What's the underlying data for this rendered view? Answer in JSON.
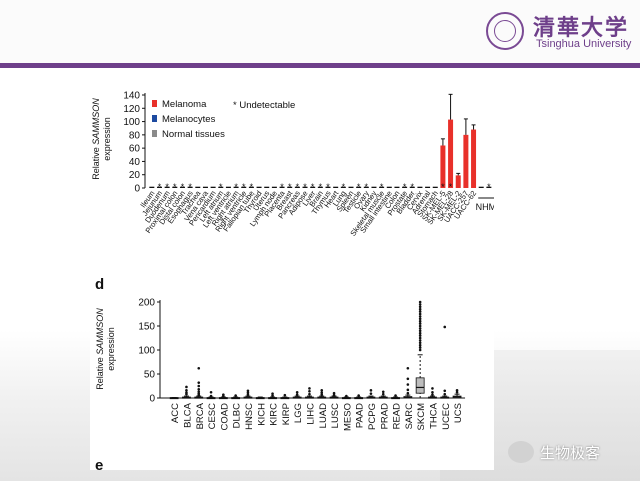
{
  "header": {
    "logo_cn": "清華大学",
    "logo_en": "Tsinghua University"
  },
  "watermark": {
    "text": "生物极客"
  },
  "colors": {
    "melanoma": "#e8302a",
    "melanocytes": "#1d4aa0",
    "normal": "#8a8a8a",
    "brand": "#6e3f8a"
  },
  "chart_data": [
    {
      "type": "bar",
      "ylabel_prefix": "Relative ",
      "ylabel_gene": "SAMMSON",
      "ylabel_suffix": "expression",
      "ylim": [
        0,
        140
      ],
      "yticks": [
        0,
        20,
        40,
        60,
        80,
        100,
        120,
        140
      ],
      "legend": [
        "Melanoma",
        "Melanocytes",
        "Normal tissues"
      ],
      "star_note": "* Undetectable",
      "group_label": "NHME",
      "categories": [
        "Ileum",
        "Jejunum",
        "Duodenum",
        "Proximal colon",
        "Distal colon",
        "Esophagus",
        "Trachea",
        "Vena cava",
        "Pericardium",
        "Left atrium",
        "Left ventricle",
        "Right atrium",
        "Right ventricle",
        "Fallopian tube",
        "Thyroid",
        "Uterus",
        "Lymph node",
        "Placenta",
        "Breast",
        "Pancreas",
        "Adipose",
        "Liver",
        "Brain",
        "Thymus",
        "Heart",
        "Lung",
        "Spleen",
        "Testicle",
        "Ovary",
        "Kidney",
        "Skeletal muscle",
        "Small intestine",
        "Colon",
        "Prostate",
        "Bladder",
        "Cervix",
        "Adrenal",
        "Stomach",
        "SK-MEL-5",
        "SK-MEL-28",
        "SK-MEL-2",
        "UACC-257",
        "UACC-62",
        "",
        "",
        ""
      ],
      "series": [
        {
          "name": "Normal tissues",
          "values": [
            0,
            0,
            0,
            0,
            0,
            0,
            0,
            0,
            0,
            0,
            0,
            0,
            0,
            0,
            0,
            0,
            0,
            0,
            0,
            0,
            0,
            0,
            0,
            0,
            0,
            0,
            0,
            0,
            0,
            0,
            0,
            0,
            0,
            0,
            0,
            0,
            0,
            0,
            null,
            null,
            null,
            null,
            null,
            null,
            null,
            null
          ]
        },
        {
          "name": "Melanoma",
          "values": [
            null,
            null,
            null,
            null,
            null,
            null,
            null,
            null,
            null,
            null,
            null,
            null,
            null,
            null,
            null,
            null,
            null,
            null,
            null,
            null,
            null,
            null,
            null,
            null,
            null,
            null,
            null,
            null,
            null,
            null,
            null,
            null,
            null,
            null,
            null,
            null,
            null,
            null,
            64,
            103,
            19,
            80,
            88,
            null,
            null,
            null
          ],
          "errors": [
            null,
            null,
            null,
            null,
            null,
            null,
            null,
            null,
            null,
            null,
            null,
            null,
            null,
            null,
            null,
            null,
            null,
            null,
            null,
            null,
            null,
            null,
            null,
            null,
            null,
            null,
            null,
            null,
            null,
            null,
            null,
            null,
            null,
            null,
            null,
            null,
            null,
            null,
            10,
            38,
            3,
            24,
            7,
            null,
            null,
            null
          ]
        },
        {
          "name": "Melanocytes",
          "values": [
            null,
            null,
            null,
            null,
            null,
            null,
            null,
            null,
            null,
            null,
            null,
            null,
            null,
            null,
            null,
            null,
            null,
            null,
            null,
            null,
            null,
            null,
            null,
            null,
            null,
            null,
            null,
            null,
            null,
            null,
            null,
            null,
            null,
            null,
            null,
            null,
            null,
            null,
            null,
            null,
            null,
            null,
            null,
            0,
            0,
            0
          ]
        }
      ],
      "undetectable": [
        1,
        2,
        3,
        4,
        5,
        9,
        11,
        12,
        13,
        17,
        18,
        19,
        20,
        21,
        22,
        23,
        25,
        27,
        28,
        30,
        33,
        34,
        38,
        39,
        44
      ]
    },
    {
      "type": "box",
      "panel_label": "d",
      "ylabel_prefix": "Relative ",
      "ylabel_gene": "SAMMSON",
      "ylabel_suffix": "expression",
      "ylim": [
        0,
        200
      ],
      "yticks": [
        0,
        50,
        100,
        150,
        200
      ],
      "categories": [
        "ACC",
        "BLCA",
        "BRCA",
        "CESC",
        "COAD",
        "DLBC",
        "HNSC",
        "KICH",
        "KIRC",
        "KIRP",
        "LGG",
        "LIHC",
        "LUAD",
        "LUSC",
        "MESO",
        "PAAD",
        "PCPG",
        "PRAD",
        "READ",
        "SARC",
        "SKCM",
        "THCA",
        "UCEC",
        "UCS"
      ],
      "boxes": [
        {
          "q1": 0,
          "median": 0,
          "q3": 1,
          "whisker_low": 0,
          "whisker_high": 1,
          "outliers": []
        },
        {
          "q1": 0,
          "median": 1,
          "q3": 2,
          "whisker_low": 0,
          "whisker_high": 4,
          "outliers": [
            8,
            11,
            16,
            23
          ]
        },
        {
          "q1": 0,
          "median": 1,
          "q3": 2,
          "whisker_low": 0,
          "whisker_high": 4,
          "outliers": [
            6,
            9,
            13,
            18,
            25,
            32,
            62
          ]
        },
        {
          "q1": 0,
          "median": 0,
          "q3": 1,
          "whisker_low": 0,
          "whisker_high": 2,
          "outliers": [
            4,
            12
          ]
        },
        {
          "q1": 0,
          "median": 0,
          "q3": 1,
          "whisker_low": 0,
          "whisker_high": 2,
          "outliers": [
            4,
            7
          ]
        },
        {
          "q1": 0,
          "median": 0,
          "q3": 1,
          "whisker_low": 0,
          "whisker_high": 2,
          "outliers": [
            5
          ]
        },
        {
          "q1": 0,
          "median": 1,
          "q3": 2,
          "whisker_low": 0,
          "whisker_high": 4,
          "outliers": [
            7,
            11,
            15
          ]
        },
        {
          "q1": 0,
          "median": 0,
          "q3": 1,
          "whisker_low": 0,
          "whisker_high": 2,
          "outliers": []
        },
        {
          "q1": 0,
          "median": 0,
          "q3": 1,
          "whisker_low": 0,
          "whisker_high": 2,
          "outliers": [
            5,
            9
          ]
        },
        {
          "q1": 0,
          "median": 0,
          "q3": 1,
          "whisker_low": 0,
          "whisker_high": 2,
          "outliers": [
            6
          ]
        },
        {
          "q1": 0,
          "median": 1,
          "q3": 2,
          "whisker_low": 0,
          "whisker_high": 4,
          "outliers": [
            7,
            12
          ]
        },
        {
          "q1": 0,
          "median": 1,
          "q3": 2,
          "whisker_low": 0,
          "whisker_high": 4,
          "outliers": [
            8,
            14,
            20
          ]
        },
        {
          "q1": 0,
          "median": 1,
          "q3": 2,
          "whisker_low": 0,
          "whisker_high": 4,
          "outliers": [
            7,
            11,
            16
          ]
        },
        {
          "q1": 0,
          "median": 1,
          "q3": 2,
          "whisker_low": 0,
          "whisker_high": 4,
          "outliers": [
            6,
            10
          ]
        },
        {
          "q1": 0,
          "median": 0,
          "q3": 1,
          "whisker_low": 0,
          "whisker_high": 2,
          "outliers": [
            4
          ]
        },
        {
          "q1": 0,
          "median": 0,
          "q3": 1,
          "whisker_low": 0,
          "whisker_high": 2,
          "outliers": [
            5
          ]
        },
        {
          "q1": 0,
          "median": 1,
          "q3": 2,
          "whisker_low": 0,
          "whisker_high": 4,
          "outliers": [
            9,
            16
          ]
        },
        {
          "q1": 0,
          "median": 1,
          "q3": 2,
          "whisker_low": 0,
          "whisker_high": 4,
          "outliers": [
            8,
            13
          ]
        },
        {
          "q1": 0,
          "median": 0,
          "q3": 1,
          "whisker_low": 0,
          "whisker_high": 2,
          "outliers": [
            5
          ]
        },
        {
          "q1": 0,
          "median": 1,
          "q3": 3,
          "whisker_low": 0,
          "whisker_high": 6,
          "outliers": [
            10,
            17,
            28,
            40,
            62
          ]
        },
        {
          "q1": 10,
          "median": 22,
          "q3": 42,
          "whisker_low": 0,
          "whisker_high": 90,
          "outliers": [
            100,
            105,
            110,
            115,
            120,
            125,
            130,
            135,
            140,
            145,
            150,
            155,
            160,
            165,
            170,
            175,
            180,
            185,
            190,
            195,
            200
          ]
        },
        {
          "q1": 0,
          "median": 1,
          "q3": 2,
          "whisker_low": 0,
          "whisker_high": 4,
          "outliers": [
            7,
            12,
            20
          ]
        },
        {
          "q1": 0,
          "median": 1,
          "q3": 2,
          "whisker_low": 0,
          "whisker_high": 4,
          "outliers": [
            8,
            15,
            148
          ]
        },
        {
          "q1": 0,
          "median": 2,
          "q3": 4,
          "whisker_low": 0,
          "whisker_high": 8,
          "outliers": [
            12,
            16
          ]
        }
      ]
    },
    {
      "panel_label": "e"
    }
  ]
}
